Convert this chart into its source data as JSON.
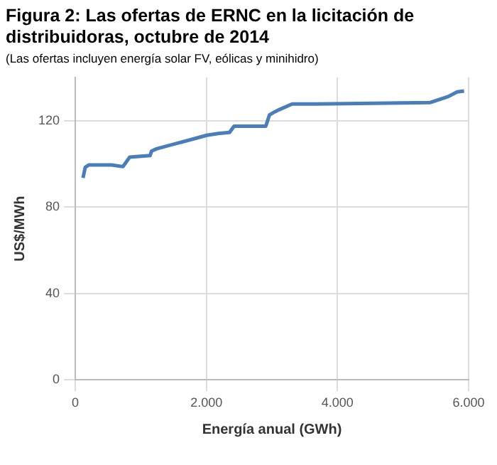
{
  "chart_data": {
    "type": "line",
    "title": "Figura 2: Las ofertas de ERNC en la licitación de distribuidoras, octubre de 2014",
    "subtitle": "(Las ofertas incluyen energía solar FV, eólicas y minihidro)",
    "xlabel": "Energía anual (GWh)",
    "ylabel": "US$/MWh",
    "x": [
      118,
      152,
      208,
      554,
      727,
      830,
      1142,
      1163,
      1246,
      2007,
      2180,
      2353,
      2422,
      2906,
      2962,
      3045,
      3114,
      3308,
      3665,
      5408,
      5687,
      5826,
      5931
    ],
    "series": [
      {
        "color": "#4a7ebb",
        "values": [
          93.5,
          98.4,
          99.5,
          99.5,
          98.7,
          103.1,
          103.8,
          105.9,
          107,
          113.2,
          114,
          114.5,
          117.4,
          117.4,
          122.6,
          124.1,
          125.1,
          127.7,
          127.7,
          128.3,
          131.1,
          133.3,
          133.7
        ]
      }
    ],
    "xlim": [
      0,
      6000
    ],
    "xticks": [
      {
        "value": 0,
        "label": "0"
      },
      {
        "value": 2000,
        "label": "2.000"
      },
      {
        "value": 4000,
        "label": "4.000"
      },
      {
        "value": 6000,
        "label": "6.000"
      }
    ],
    "ylim": [
      0,
      140
    ],
    "yticks": [
      0,
      40,
      80,
      120
    ],
    "grid": true,
    "legend": false,
    "marker": "none",
    "line_style": "solid"
  }
}
